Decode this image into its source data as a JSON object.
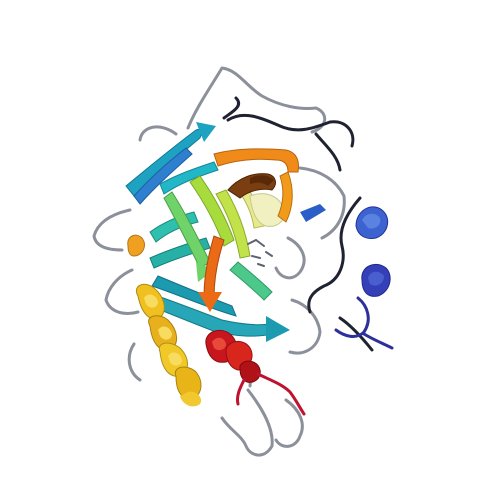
{
  "scene": {
    "background": "#ffffff",
    "subject": "protein-ribbon-cartoon",
    "rainbow_palette": [
      "#2b2b9a",
      "#3c5ccf",
      "#3a8fd8",
      "#22b7c6",
      "#2fc0a0",
      "#6fd36a",
      "#b8e04a",
      "#f0c020",
      "#f29a1a",
      "#ea5a16",
      "#c8161e",
      "#8b1a1a"
    ],
    "coil_colors": {
      "dark_loop": "#1f2230",
      "grey_loop": "#8a8f9a",
      "red_loop": "#c0122e",
      "blue_loop": "#2d2f9a"
    },
    "ligand_color": "#5e6270"
  }
}
